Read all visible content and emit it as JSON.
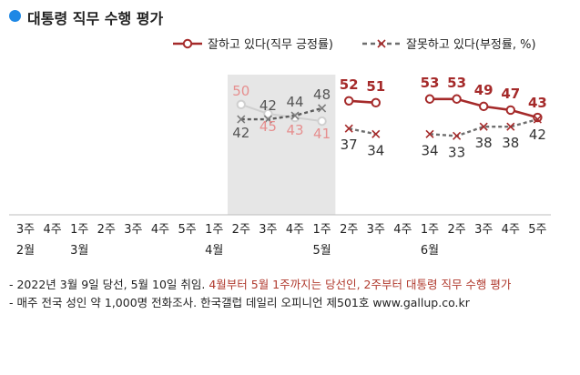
{
  "title": "대통령 직무 수행 평가",
  "colors": {
    "accent_dot": "#1e88e5",
    "approve": "#a52a2a",
    "disapprove": "#6e6e6e",
    "approve_pre": "#e68f8f",
    "disapprove_pre": "#5c5c5c",
    "preinauguration_shade": "#e6e6e6",
    "note_highlight": "#b03a2e"
  },
  "notes": {
    "line1_plain": "- 2022년 3월 9일 당선, 5월 10일 취임. ",
    "line1_highlight": "4월부터 5월 1주까지는 당선인, 2주부터 대통령 직무 수행 평가",
    "line2": "- 매주 전국 성인 약 1,000명 전화조사. 한국갤럽 데일리 오피니언 제501호 www.gallup.co.kr"
  },
  "chart_data": {
    "type": "line",
    "x": [
      "3주",
      "4주",
      "1주",
      "2주",
      "3주",
      "4주",
      "5주",
      "1주",
      "2주",
      "3주",
      "4주",
      "1주",
      "2주",
      "3주",
      "4주",
      "1주",
      "2주",
      "3주",
      "4주",
      "5주"
    ],
    "month_labels": [
      {
        "index": 0,
        "label": "2월"
      },
      {
        "index": 2,
        "label": "3월"
      },
      {
        "index": 7,
        "label": "4월"
      },
      {
        "index": 11,
        "label": "5월"
      },
      {
        "index": 15,
        "label": "6월"
      }
    ],
    "shaded_range": [
      8,
      11
    ],
    "ylim": [
      0,
      70
    ],
    "legend_position": "top-right",
    "series": [
      {
        "name": "잘하고 있다(직무 긍정률)",
        "marker": "circle",
        "segments": [
          {
            "style": "pre",
            "points": [
              [
                8,
                50
              ],
              [
                9,
                45
              ],
              [
                10,
                43
              ],
              [
                11,
                41
              ]
            ]
          },
          {
            "style": "main",
            "points": [
              [
                12,
                52
              ],
              [
                13,
                51
              ]
            ]
          },
          {
            "style": "main",
            "points": [
              [
                15,
                53
              ],
              [
                16,
                53
              ],
              [
                17,
                49
              ],
              [
                18,
                47
              ],
              [
                19,
                43
              ]
            ]
          }
        ]
      },
      {
        "name": "잘못하고 있다(부정률, %)",
        "marker": "x",
        "segments": [
          {
            "style": "pre",
            "points": [
              [
                8,
                42
              ],
              [
                9,
                42
              ],
              [
                10,
                44
              ],
              [
                11,
                48
              ]
            ]
          },
          {
            "style": "main",
            "points": [
              [
                12,
                37
              ],
              [
                13,
                34
              ]
            ]
          },
          {
            "style": "main",
            "points": [
              [
                15,
                34
              ],
              [
                16,
                33
              ],
              [
                17,
                38
              ],
              [
                18,
                38
              ],
              [
                19,
                42
              ]
            ]
          }
        ]
      }
    ]
  }
}
